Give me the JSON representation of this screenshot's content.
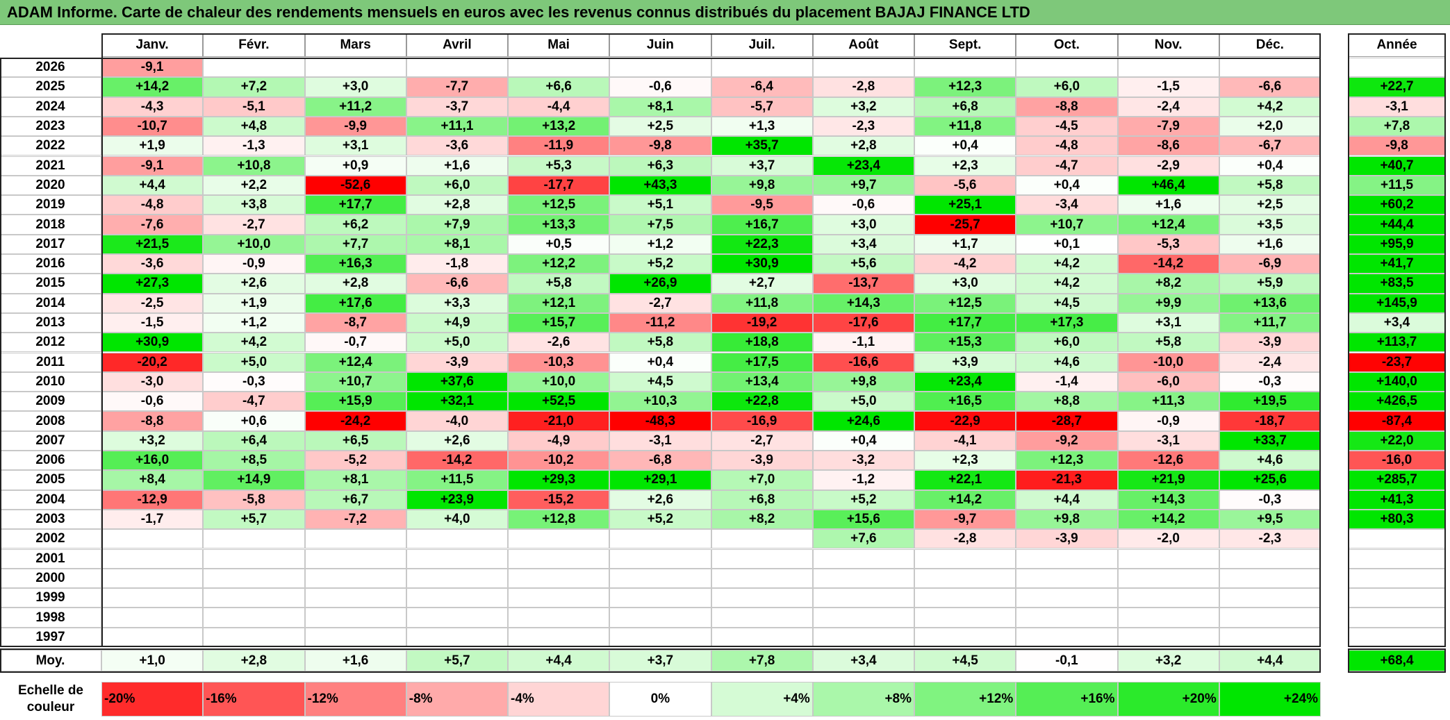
{
  "title": "ADAM Informe. Carte de chaleur des rendements mensuels en euros avec les revenus connus distribués du placement BAJAJ FINANCE LTD",
  "chart_data": {
    "type": "heatmap",
    "months": [
      "Janv.",
      "Févr.",
      "Mars",
      "Avril",
      "Mai",
      "Juin",
      "Juil.",
      "Août",
      "Sept.",
      "Oct.",
      "Nov.",
      "Déc."
    ],
    "year_header": "Année",
    "rows": [
      {
        "year": "2026",
        "values": [
          "-9,1",
          "",
          "",
          "",
          "",
          "",
          "",
          "",
          "",
          "",
          "",
          ""
        ],
        "annual": ""
      },
      {
        "year": "2025",
        "values": [
          "+14,2",
          "+7,2",
          "+3,0",
          "-7,7",
          "+6,6",
          "-0,6",
          "-6,4",
          "-2,8",
          "+12,3",
          "+6,0",
          "-1,5",
          "-6,6"
        ],
        "annual": "+22,7"
      },
      {
        "year": "2024",
        "values": [
          "-4,3",
          "-5,1",
          "+11,2",
          "-3,7",
          "-4,4",
          "+8,1",
          "-5,7",
          "+3,2",
          "+6,8",
          "-8,8",
          "-2,4",
          "+4,2"
        ],
        "annual": "-3,1"
      },
      {
        "year": "2023",
        "values": [
          "-10,7",
          "+4,8",
          "-9,9",
          "+11,1",
          "+13,2",
          "+2,5",
          "+1,3",
          "-2,3",
          "+11,8",
          "-4,5",
          "-7,9",
          "+2,0"
        ],
        "annual": "+7,8"
      },
      {
        "year": "2022",
        "values": [
          "+1,9",
          "-1,3",
          "+3,1",
          "-3,6",
          "-11,9",
          "-9,8",
          "+35,7",
          "+2,8",
          "+0,4",
          "-4,8",
          "-8,6",
          "-6,7"
        ],
        "annual": "-9,8"
      },
      {
        "year": "2021",
        "values": [
          "-9,1",
          "+10,8",
          "+0,9",
          "+1,6",
          "+5,3",
          "+6,3",
          "+3,7",
          "+23,4",
          "+2,3",
          "-4,7",
          "-2,9",
          "+0,4"
        ],
        "annual": "+40,7"
      },
      {
        "year": "2020",
        "values": [
          "+4,4",
          "+2,2",
          "-52,6",
          "+6,0",
          "-17,7",
          "+43,3",
          "+9,8",
          "+9,7",
          "-5,6",
          "+0,4",
          "+46,4",
          "+5,8"
        ],
        "annual": "+11,5"
      },
      {
        "year": "2019",
        "values": [
          "-4,8",
          "+3,8",
          "+17,7",
          "+2,8",
          "+12,5",
          "+5,1",
          "-9,5",
          "-0,6",
          "+25,1",
          "-3,4",
          "+1,6",
          "+2,5"
        ],
        "annual": "+60,2"
      },
      {
        "year": "2018",
        "values": [
          "-7,6",
          "-2,7",
          "+6,2",
          "+7,9",
          "+13,3",
          "+7,5",
          "+16,7",
          "+3,0",
          "-25,7",
          "+10,7",
          "+12,4",
          "+3,5"
        ],
        "annual": "+44,4"
      },
      {
        "year": "2017",
        "values": [
          "+21,5",
          "+10,0",
          "+7,7",
          "+8,1",
          "+0,5",
          "+1,2",
          "+22,3",
          "+3,4",
          "+1,7",
          "+0,1",
          "-5,3",
          "+1,6"
        ],
        "annual": "+95,9"
      },
      {
        "year": "2016",
        "values": [
          "-3,6",
          "-0,9",
          "+16,3",
          "-1,8",
          "+12,2",
          "+5,2",
          "+30,9",
          "+5,6",
          "-4,2",
          "+4,2",
          "-14,2",
          "-6,9"
        ],
        "annual": "+41,7"
      },
      {
        "year": "2015",
        "values": [
          "+27,3",
          "+2,6",
          "+2,8",
          "-6,6",
          "+5,8",
          "+26,9",
          "+2,7",
          "-13,7",
          "+3,0",
          "+4,2",
          "+8,2",
          "+5,9"
        ],
        "annual": "+83,5"
      },
      {
        "year": "2014",
        "values": [
          "-2,5",
          "+1,9",
          "+17,6",
          "+3,3",
          "+12,1",
          "-2,7",
          "+11,8",
          "+14,3",
          "+12,5",
          "+4,5",
          "+9,9",
          "+13,6"
        ],
        "annual": "+145,9"
      },
      {
        "year": "2013",
        "values": [
          "-1,5",
          "+1,2",
          "-8,7",
          "+4,9",
          "+15,7",
          "-11,2",
          "-19,2",
          "-17,6",
          "+17,7",
          "+17,3",
          "+3,1",
          "+11,7"
        ],
        "annual": "+3,4"
      },
      {
        "year": "2012",
        "values": [
          "+30,9",
          "+4,2",
          "-0,7",
          "+5,0",
          "-2,6",
          "+5,8",
          "+18,8",
          "-1,1",
          "+15,3",
          "+6,0",
          "+5,8",
          "-3,9"
        ],
        "annual": "+113,7"
      },
      {
        "year": "2011",
        "values": [
          "-20,2",
          "+5,0",
          "+12,4",
          "-3,9",
          "-10,3",
          "+0,4",
          "+17,5",
          "-16,6",
          "+3,9",
          "+4,6",
          "-10,0",
          "-2,4"
        ],
        "annual": "-23,7"
      },
      {
        "year": "2010",
        "values": [
          "-3,0",
          "-0,3",
          "+10,7",
          "+37,6",
          "+10,0",
          "+4,5",
          "+13,4",
          "+9,8",
          "+23,4",
          "-1,4",
          "-6,0",
          "-0,3"
        ],
        "annual": "+140,0"
      },
      {
        "year": "2009",
        "values": [
          "-0,6",
          "-4,7",
          "+15,9",
          "+32,1",
          "+52,5",
          "+10,3",
          "+22,8",
          "+5,0",
          "+16,5",
          "+8,8",
          "+11,3",
          "+19,5"
        ],
        "annual": "+426,5"
      },
      {
        "year": "2008",
        "values": [
          "-8,8",
          "+0,6",
          "-24,2",
          "-4,0",
          "-21,0",
          "-48,3",
          "-16,9",
          "+24,6",
          "-22,9",
          "-28,7",
          "-0,9",
          "-18,7"
        ],
        "annual": "-87,4"
      },
      {
        "year": "2007",
        "values": [
          "+3,2",
          "+6,4",
          "+6,5",
          "+2,6",
          "-4,9",
          "-3,1",
          "-2,7",
          "+0,4",
          "-4,1",
          "-9,2",
          "-3,1",
          "+33,7"
        ],
        "annual": "+22,0"
      },
      {
        "year": "2006",
        "values": [
          "+16,0",
          "+8,5",
          "-5,2",
          "-14,2",
          "-10,2",
          "-6,8",
          "-3,9",
          "-3,2",
          "+2,3",
          "+12,3",
          "-12,6",
          "+4,6"
        ],
        "annual": "-16,0"
      },
      {
        "year": "2005",
        "values": [
          "+8,4",
          "+14,9",
          "+8,1",
          "+11,5",
          "+29,3",
          "+29,1",
          "+7,0",
          "-1,2",
          "+22,1",
          "-21,3",
          "+21,9",
          "+25,6"
        ],
        "annual": "+285,7"
      },
      {
        "year": "2004",
        "values": [
          "-12,9",
          "-5,8",
          "+6,7",
          "+23,9",
          "-15,2",
          "+2,6",
          "+6,8",
          "+5,2",
          "+14,2",
          "+4,4",
          "+14,3",
          "-0,3"
        ],
        "annual": "+41,3"
      },
      {
        "year": "2003",
        "values": [
          "-1,7",
          "+5,7",
          "-7,2",
          "+4,0",
          "+12,8",
          "+5,2",
          "+8,2",
          "+15,6",
          "-9,7",
          "+9,8",
          "+14,2",
          "+9,5"
        ],
        "annual": "+80,3"
      },
      {
        "year": "2002",
        "values": [
          "",
          "",
          "",
          "",
          "",
          "",
          "",
          "+7,6",
          "-2,8",
          "-3,9",
          "-2,0",
          "-2,3"
        ],
        "annual": ""
      },
      {
        "year": "2001",
        "values": [
          "",
          "",
          "",
          "",
          "",
          "",
          "",
          "",
          "",
          "",
          "",
          ""
        ],
        "annual": ""
      },
      {
        "year": "2000",
        "values": [
          "",
          "",
          "",
          "",
          "",
          "",
          "",
          "",
          "",
          "",
          "",
          ""
        ],
        "annual": ""
      },
      {
        "year": "1999",
        "values": [
          "",
          "",
          "",
          "",
          "",
          "",
          "",
          "",
          "",
          "",
          "",
          ""
        ],
        "annual": ""
      },
      {
        "year": "1998",
        "values": [
          "",
          "",
          "",
          "",
          "",
          "",
          "",
          "",
          "",
          "",
          "",
          ""
        ],
        "annual": ""
      },
      {
        "year": "1997",
        "values": [
          "",
          "",
          "",
          "",
          "",
          "",
          "",
          "",
          "",
          "",
          "",
          ""
        ],
        "annual": ""
      }
    ],
    "average": {
      "label": "Moy.",
      "values": [
        "+1,0",
        "+2,8",
        "+1,6",
        "+5,7",
        "+4,4",
        "+3,7",
        "+7,8",
        "+3,4",
        "+4,5",
        "-0,1",
        "+3,2",
        "+4,4"
      ],
      "annual": "+68,4"
    },
    "scale": {
      "label_line1": "Echelle de",
      "label_line2": "couleur",
      "steps": [
        "-20%",
        "-16%",
        "-12%",
        "-8%",
        "-4%",
        "0%",
        "+4%",
        "+8%",
        "+12%",
        "+16%",
        "+20%",
        "+24%"
      ]
    }
  }
}
